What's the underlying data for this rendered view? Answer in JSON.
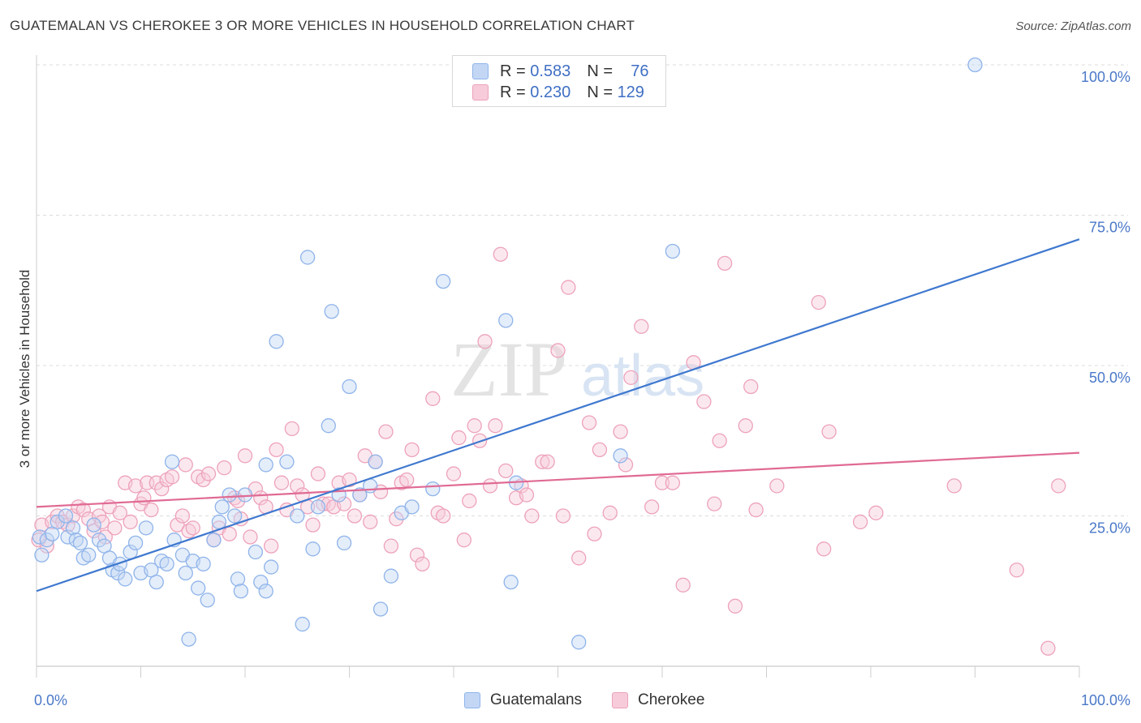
{
  "title": "GUATEMALAN VS CHEROKEE 3 OR MORE VEHICLES IN HOUSEHOLD CORRELATION CHART",
  "source": "Source: ZipAtlas.com",
  "watermark": {
    "zip": "ZIP",
    "atlas": "atlas"
  },
  "colors": {
    "blue": "#8fb4ea",
    "blue_fill": "#c3d7f5",
    "blue_line": "#3f78cf",
    "pink": "#eda2bb",
    "pink_fill": "#f7cbda",
    "pink_line": "#e06a94",
    "tick_label": "#4a78c8",
    "grid": "#dcdcdc"
  },
  "legend_top": {
    "rows": [
      {
        "r_label": "R =",
        "r_value": "0.583",
        "n_label": "N =",
        "n_value": "76"
      },
      {
        "r_label": "R =",
        "r_value": "0.230",
        "n_label": "N =",
        "n_value": "129"
      }
    ]
  },
  "legend_bottom": [
    "Guatemalans",
    "Cherokee"
  ],
  "chart_data": {
    "type": "scatter",
    "title": "GUATEMALAN VS CHEROKEE 3 OR MORE VEHICLES IN HOUSEHOLD CORRELATION CHART",
    "xlabel": "",
    "ylabel": "3 or more Vehicles in Household",
    "xlim": [
      0,
      100
    ],
    "ylim": [
      0,
      105
    ],
    "x_tick_labels": [
      {
        "value": 0,
        "label": "0.0%"
      },
      {
        "value": 100,
        "label": "100.0%"
      }
    ],
    "y_tick_labels": [
      {
        "value": 25,
        "label": "25.0%"
      },
      {
        "value": 50,
        "label": "50.0%"
      },
      {
        "value": 75,
        "label": "75.0%"
      },
      {
        "value": 100,
        "label": "100.0%"
      }
    ],
    "grid": true,
    "legend_position": "top-center",
    "series": [
      {
        "name": "Guatemalans",
        "r": 0.583,
        "n": 76,
        "trend": {
          "x": [
            0,
            100
          ],
          "y": [
            12.5,
            71
          ]
        },
        "points": [
          [
            0.3,
            21.5
          ],
          [
            0.5,
            18.5
          ],
          [
            1,
            21
          ],
          [
            1.5,
            22
          ],
          [
            2,
            24
          ],
          [
            2.8,
            25
          ],
          [
            3,
            21.5
          ],
          [
            3.5,
            23
          ],
          [
            3.8,
            21
          ],
          [
            4.2,
            20.5
          ],
          [
            4.5,
            18
          ],
          [
            5,
            18.5
          ],
          [
            5.5,
            23.5
          ],
          [
            6,
            21
          ],
          [
            6.5,
            20
          ],
          [
            7,
            18
          ],
          [
            7.3,
            16
          ],
          [
            7.8,
            15.5
          ],
          [
            8,
            17
          ],
          [
            8.5,
            14.5
          ],
          [
            9,
            19
          ],
          [
            9.5,
            20.5
          ],
          [
            10,
            15.5
          ],
          [
            10.5,
            23
          ],
          [
            11,
            16
          ],
          [
            11.5,
            14
          ],
          [
            12,
            17.5
          ],
          [
            12.5,
            17
          ],
          [
            13,
            34
          ],
          [
            13.2,
            21
          ],
          [
            14,
            18.5
          ],
          [
            14.3,
            15.5
          ],
          [
            14.6,
            4.5
          ],
          [
            15,
            17.5
          ],
          [
            15.5,
            13
          ],
          [
            16,
            17
          ],
          [
            16.4,
            11
          ],
          [
            17,
            21
          ],
          [
            17.5,
            24
          ],
          [
            17.8,
            26.5
          ],
          [
            18.5,
            28.5
          ],
          [
            19,
            25
          ],
          [
            19.3,
            14.5
          ],
          [
            19.6,
            12.5
          ],
          [
            20,
            28.5
          ],
          [
            21,
            19
          ],
          [
            21.5,
            14
          ],
          [
            22,
            12.5
          ],
          [
            22.5,
            16.5
          ],
          [
            22,
            33.5
          ],
          [
            23,
            54
          ],
          [
            24,
            34
          ],
          [
            25,
            25
          ],
          [
            25.5,
            7
          ],
          [
            26,
            68
          ],
          [
            26.5,
            19.5
          ],
          [
            27,
            26.5
          ],
          [
            28,
            40
          ],
          [
            28.3,
            59
          ],
          [
            29,
            28.5
          ],
          [
            29.5,
            20.5
          ],
          [
            30,
            46.5
          ],
          [
            31,
            28.5
          ],
          [
            32,
            30
          ],
          [
            32.5,
            34
          ],
          [
            33,
            9.5
          ],
          [
            34,
            15
          ],
          [
            35,
            25.5
          ],
          [
            36,
            26.5
          ],
          [
            38,
            29.5
          ],
          [
            39,
            64
          ],
          [
            45,
            57.5
          ],
          [
            45.5,
            14
          ],
          [
            46,
            30.5
          ],
          [
            52,
            4
          ],
          [
            56,
            35
          ],
          [
            61,
            69
          ],
          [
            90,
            100
          ]
        ]
      },
      {
        "name": "Cherokee",
        "r": 0.23,
        "n": 129,
        "trend": {
          "x": [
            0,
            100
          ],
          "y": [
            26.5,
            35.5
          ]
        },
        "points": [
          [
            0.2,
            21
          ],
          [
            0.5,
            23.5
          ],
          [
            1,
            20
          ],
          [
            1.5,
            24
          ],
          [
            2,
            25
          ],
          [
            2.5,
            24
          ],
          [
            3,
            23.5
          ],
          [
            3.5,
            25
          ],
          [
            4,
            26.5
          ],
          [
            4.5,
            26
          ],
          [
            5,
            24.5
          ],
          [
            5.5,
            22.5
          ],
          [
            6,
            25
          ],
          [
            6.3,
            24
          ],
          [
            6.6,
            21.5
          ],
          [
            7,
            26.5
          ],
          [
            7.5,
            23
          ],
          [
            8,
            25.5
          ],
          [
            8.5,
            30.5
          ],
          [
            9,
            24
          ],
          [
            9.5,
            30
          ],
          [
            10,
            27
          ],
          [
            10.3,
            28
          ],
          [
            10.6,
            30.5
          ],
          [
            11,
            26
          ],
          [
            11.5,
            30.5
          ],
          [
            12,
            29.5
          ],
          [
            12.5,
            31
          ],
          [
            13,
            31.5
          ],
          [
            13.5,
            23.5
          ],
          [
            14,
            25
          ],
          [
            14.3,
            33.5
          ],
          [
            14.6,
            22.5
          ],
          [
            15,
            23
          ],
          [
            15.5,
            31.5
          ],
          [
            16,
            31
          ],
          [
            16.5,
            32
          ],
          [
            17,
            21
          ],
          [
            17.5,
            23
          ],
          [
            18,
            33
          ],
          [
            18.5,
            22
          ],
          [
            19,
            28
          ],
          [
            19.3,
            27.5
          ],
          [
            19.6,
            24.5
          ],
          [
            20,
            35
          ],
          [
            20.5,
            21.5
          ],
          [
            21,
            29.5
          ],
          [
            21.5,
            28
          ],
          [
            22,
            26.5
          ],
          [
            22.5,
            20
          ],
          [
            23,
            36
          ],
          [
            23.5,
            30.5
          ],
          [
            24,
            26
          ],
          [
            24.5,
            39.5
          ],
          [
            25,
            30
          ],
          [
            25.5,
            28.5
          ],
          [
            26,
            26.5
          ],
          [
            26.5,
            23.5
          ],
          [
            27,
            32
          ],
          [
            27.5,
            27
          ],
          [
            28,
            27
          ],
          [
            28.5,
            26.5
          ],
          [
            29,
            30.5
          ],
          [
            29.5,
            27
          ],
          [
            30,
            31
          ],
          [
            30.5,
            25
          ],
          [
            31,
            28.5
          ],
          [
            31.5,
            35
          ],
          [
            32,
            24
          ],
          [
            32.5,
            34
          ],
          [
            33,
            29
          ],
          [
            33.5,
            39
          ],
          [
            34,
            20
          ],
          [
            34.5,
            24.5
          ],
          [
            35,
            30.5
          ],
          [
            35.5,
            31
          ],
          [
            36,
            36
          ],
          [
            36.5,
            18.5
          ],
          [
            37,
            17
          ],
          [
            38,
            44.5
          ],
          [
            38.5,
            25.5
          ],
          [
            39,
            25
          ],
          [
            40,
            32
          ],
          [
            40.5,
            38
          ],
          [
            41,
            21
          ],
          [
            41.5,
            27.5
          ],
          [
            42,
            40
          ],
          [
            42.5,
            37.5
          ],
          [
            43,
            54
          ],
          [
            43.5,
            30
          ],
          [
            44,
            40
          ],
          [
            44.5,
            68.5
          ],
          [
            45,
            32.5
          ],
          [
            46,
            28
          ],
          [
            46.5,
            30
          ],
          [
            47,
            28.5
          ],
          [
            47.5,
            25
          ],
          [
            48.5,
            34
          ],
          [
            49,
            34
          ],
          [
            50,
            52.5
          ],
          [
            50.5,
            25
          ],
          [
            51,
            63
          ],
          [
            52,
            18
          ],
          [
            53,
            40.5
          ],
          [
            53.5,
            22
          ],
          [
            54,
            36
          ],
          [
            55,
            25.5
          ],
          [
            56,
            39
          ],
          [
            56.5,
            33.5
          ],
          [
            57,
            48
          ],
          [
            58,
            56.5
          ],
          [
            59,
            26.5
          ],
          [
            60,
            30.5
          ],
          [
            61,
            30.5
          ],
          [
            62,
            13.5
          ],
          [
            63,
            50.5
          ],
          [
            64,
            44
          ],
          [
            65,
            27
          ],
          [
            65.5,
            37.5
          ],
          [
            66,
            67
          ],
          [
            67,
            10
          ],
          [
            68,
            40
          ],
          [
            68.5,
            46.5
          ],
          [
            69,
            26
          ],
          [
            71,
            30
          ],
          [
            75,
            60.5
          ],
          [
            75.5,
            19.5
          ],
          [
            76,
            39
          ],
          [
            79,
            24
          ],
          [
            80.5,
            25.5
          ],
          [
            88,
            30
          ],
          [
            94,
            16
          ],
          [
            97,
            3
          ],
          [
            98,
            30
          ]
        ]
      }
    ]
  }
}
